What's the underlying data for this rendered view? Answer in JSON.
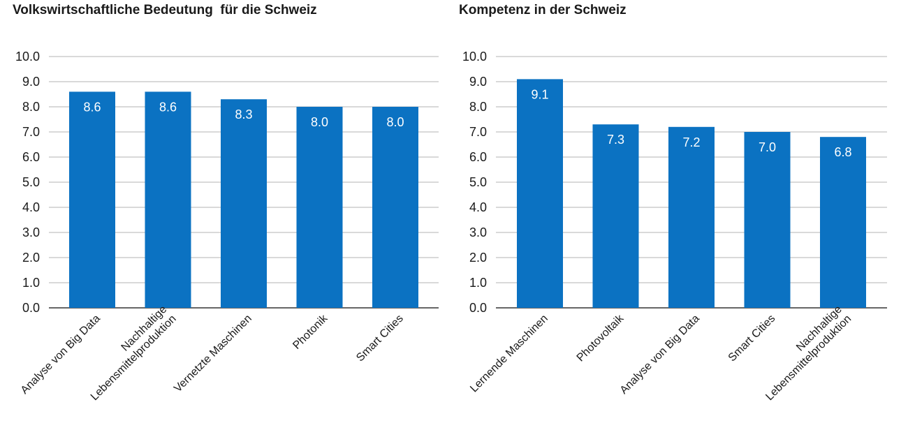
{
  "chart_data": [
    {
      "type": "bar",
      "title": "Volkswirtschaftliche Bedeutung  für die Schweiz",
      "categories": [
        [
          "Analyse von Big Data"
        ],
        [
          "Nachhaltige",
          "Lebensmittelproduktion"
        ],
        [
          "Vernetzte Maschinen"
        ],
        [
          "Photonik"
        ],
        [
          "Smart Cities"
        ]
      ],
      "values": [
        8.6,
        8.6,
        8.3,
        8.0,
        8.0
      ],
      "value_labels": [
        "8.6",
        "8.6",
        "8.3",
        "8.0",
        "8.0"
      ],
      "ylim": [
        0,
        10
      ],
      "yticks": [
        "0.0",
        "1.0",
        "2.0",
        "3.0",
        "4.0",
        "5.0",
        "6.0",
        "7.0",
        "8.0",
        "9.0",
        "10.0"
      ],
      "grid": true,
      "bar_color": "#0b72c2"
    },
    {
      "type": "bar",
      "title": "Kompetenz in der Schweiz",
      "categories": [
        [
          "Lernende Maschinen"
        ],
        [
          "Photovoltaik"
        ],
        [
          "Analyse von Big Data"
        ],
        [
          "Smart Cities"
        ],
        [
          "Nachhaltige",
          "Lebensmittelproduktion"
        ]
      ],
      "values": [
        9.1,
        7.3,
        7.2,
        7.0,
        6.8
      ],
      "value_labels": [
        "9.1",
        "7.3",
        "7.2",
        "7.0",
        "6.8"
      ],
      "ylim": [
        0,
        10
      ],
      "yticks": [
        "0.0",
        "1.0",
        "2.0",
        "3.0",
        "4.0",
        "5.0",
        "6.0",
        "7.0",
        "8.0",
        "9.0",
        "10.0"
      ],
      "grid": true,
      "bar_color": "#0b72c2"
    }
  ]
}
